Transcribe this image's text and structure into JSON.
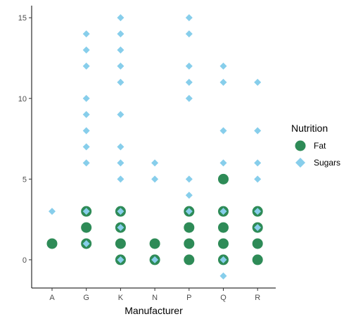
{
  "chart_data": {
    "type": "scatter",
    "title": "",
    "xlabel": "Manufacturer",
    "ylabel": "",
    "categories": [
      "A",
      "G",
      "K",
      "N",
      "P",
      "Q",
      "R"
    ],
    "yticks": [
      0,
      5,
      10,
      15
    ],
    "ylim": [
      -1.75,
      15.75
    ],
    "grid": false,
    "legend": {
      "title": "Nutrition",
      "position": "right"
    },
    "series": [
      {
        "name": "Fat",
        "color": "#2E8B57",
        "marker": "circle",
        "points": [
          [
            "A",
            1
          ],
          [
            "G",
            1
          ],
          [
            "G",
            2
          ],
          [
            "G",
            3
          ],
          [
            "K",
            0
          ],
          [
            "K",
            1
          ],
          [
            "K",
            2
          ],
          [
            "K",
            3
          ],
          [
            "N",
            0
          ],
          [
            "N",
            1
          ],
          [
            "P",
            0
          ],
          [
            "P",
            1
          ],
          [
            "P",
            2
          ],
          [
            "P",
            3
          ],
          [
            "Q",
            0
          ],
          [
            "Q",
            1
          ],
          [
            "Q",
            2
          ],
          [
            "Q",
            3
          ],
          [
            "Q",
            5
          ],
          [
            "R",
            0
          ],
          [
            "R",
            1
          ],
          [
            "R",
            2
          ],
          [
            "R",
            3
          ]
        ]
      },
      {
        "name": "Sugars",
        "color": "#87CEEB",
        "marker": "diamond",
        "points": [
          [
            "A",
            3
          ],
          [
            "G",
            1
          ],
          [
            "G",
            3
          ],
          [
            "G",
            6
          ],
          [
            "G",
            7
          ],
          [
            "G",
            8
          ],
          [
            "G",
            9
          ],
          [
            "G",
            10
          ],
          [
            "G",
            12
          ],
          [
            "G",
            13
          ],
          [
            "G",
            14
          ],
          [
            "K",
            0
          ],
          [
            "K",
            2
          ],
          [
            "K",
            3
          ],
          [
            "K",
            5
          ],
          [
            "K",
            6
          ],
          [
            "K",
            7
          ],
          [
            "K",
            9
          ],
          [
            "K",
            11
          ],
          [
            "K",
            12
          ],
          [
            "K",
            13
          ],
          [
            "K",
            14
          ],
          [
            "K",
            15
          ],
          [
            "N",
            0
          ],
          [
            "N",
            5
          ],
          [
            "N",
            6
          ],
          [
            "P",
            3
          ],
          [
            "P",
            4
          ],
          [
            "P",
            5
          ],
          [
            "P",
            10
          ],
          [
            "P",
            11
          ],
          [
            "P",
            12
          ],
          [
            "P",
            14
          ],
          [
            "P",
            15
          ],
          [
            "Q",
            -1
          ],
          [
            "Q",
            0
          ],
          [
            "Q",
            3
          ],
          [
            "Q",
            6
          ],
          [
            "Q",
            8
          ],
          [
            "Q",
            11
          ],
          [
            "Q",
            12
          ],
          [
            "R",
            2
          ],
          [
            "R",
            3
          ],
          [
            "R",
            5
          ],
          [
            "R",
            6
          ],
          [
            "R",
            8
          ],
          [
            "R",
            11
          ]
        ]
      }
    ]
  }
}
